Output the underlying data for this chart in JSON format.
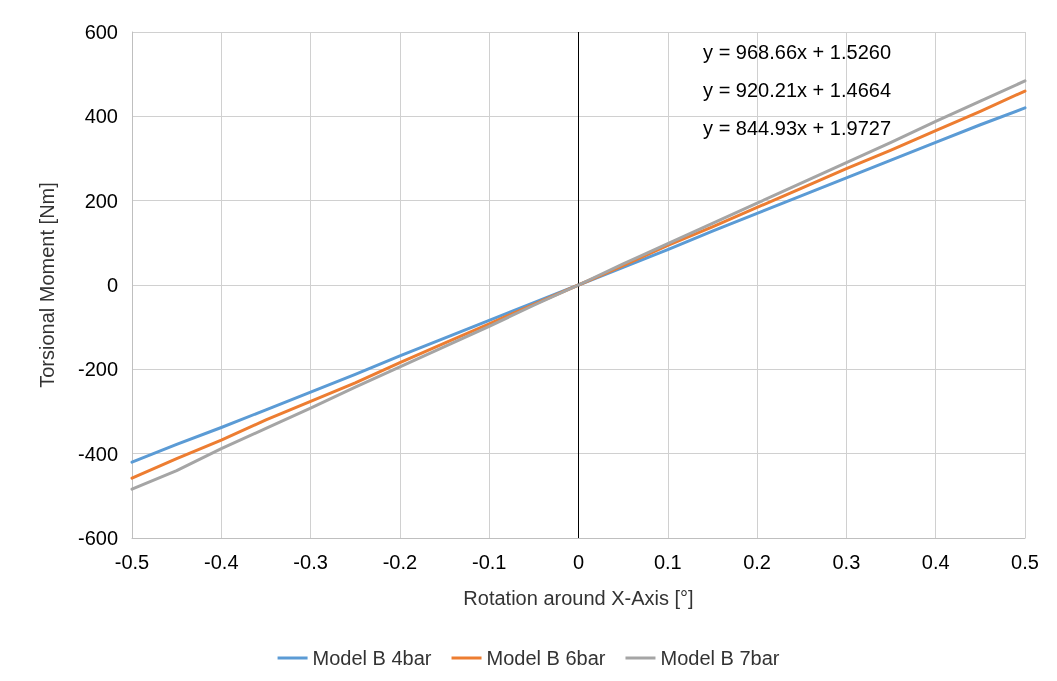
{
  "chart_data": {
    "type": "line",
    "xlabel": "Rotation around X-Axis [°]",
    "ylabel": "Torsional Moment [Nm]",
    "x": [
      -0.5,
      -0.45,
      -0.4,
      -0.35,
      -0.3,
      -0.25,
      -0.2,
      -0.15,
      -0.1,
      -0.05,
      0,
      0.05,
      0.1,
      0.15,
      0.2,
      0.25,
      0.3,
      0.35,
      0.4,
      0.45,
      0.5
    ],
    "series": [
      {
        "name": "Model B 4bar",
        "color": "#5b9bd5",
        "values": [
          -420,
          -378,
          -338,
          -296,
          -254,
          -212,
          -168,
          -126,
          -84,
          -42,
          0,
          42,
          84,
          128,
          170,
          212,
          254,
          296,
          338,
          380,
          420
        ]
      },
      {
        "name": "Model B 6bar",
        "color": "#ed7d31",
        "values": [
          -458,
          -412,
          -368,
          -320,
          -276,
          -232,
          -184,
          -138,
          -92,
          -46,
          0,
          46,
          94,
          138,
          184,
          230,
          276,
          320,
          366,
          412,
          460
        ]
      },
      {
        "name": "Model B 7bar",
        "color": "#a5a5a5",
        "values": [
          -484,
          -440,
          -388,
          -340,
          -292,
          -242,
          -194,
          -146,
          -98,
          -48,
          0,
          50,
          98,
          146,
          194,
          242,
          290,
          338,
          388,
          436,
          484
        ]
      }
    ],
    "annotations": [
      "y = 968.66x + 1.5260",
      "y = 920.21x + 1.4664",
      "y = 844.93x + 1.9727"
    ],
    "ref_lines": [
      {
        "axis": "x",
        "value": 0,
        "color": "#000000"
      }
    ],
    "xlim": [
      -0.5,
      0.5
    ],
    "xticks": [
      -0.5,
      -0.4,
      -0.3,
      -0.2,
      -0.1,
      0,
      0.1,
      0.2,
      0.3,
      0.4,
      0.5
    ],
    "ylim": [
      -600,
      600
    ],
    "yticks": [
      -600,
      -400,
      -200,
      0,
      200,
      400,
      600
    ],
    "grid": true,
    "legend": "bottom",
    "marker": "none",
    "line_style": "solid"
  }
}
